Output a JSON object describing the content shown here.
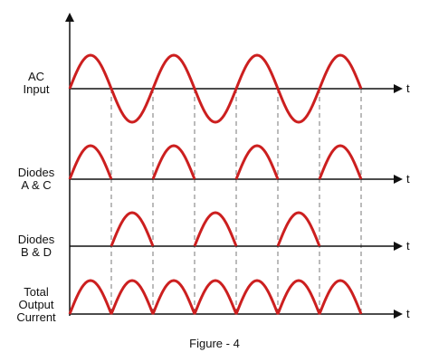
{
  "traces": [
    {
      "label": [
        "AC",
        "Input"
      ],
      "axis_label": "t"
    },
    {
      "label": [
        "Diodes",
        "A & C"
      ],
      "axis_label": "t"
    },
    {
      "label": [
        "Diodes",
        "B & D"
      ],
      "axis_label": "t"
    },
    {
      "label": [
        "Total",
        "Output",
        "Current"
      ],
      "axis_label": "t"
    }
  ],
  "caption": "Figure - 4"
}
